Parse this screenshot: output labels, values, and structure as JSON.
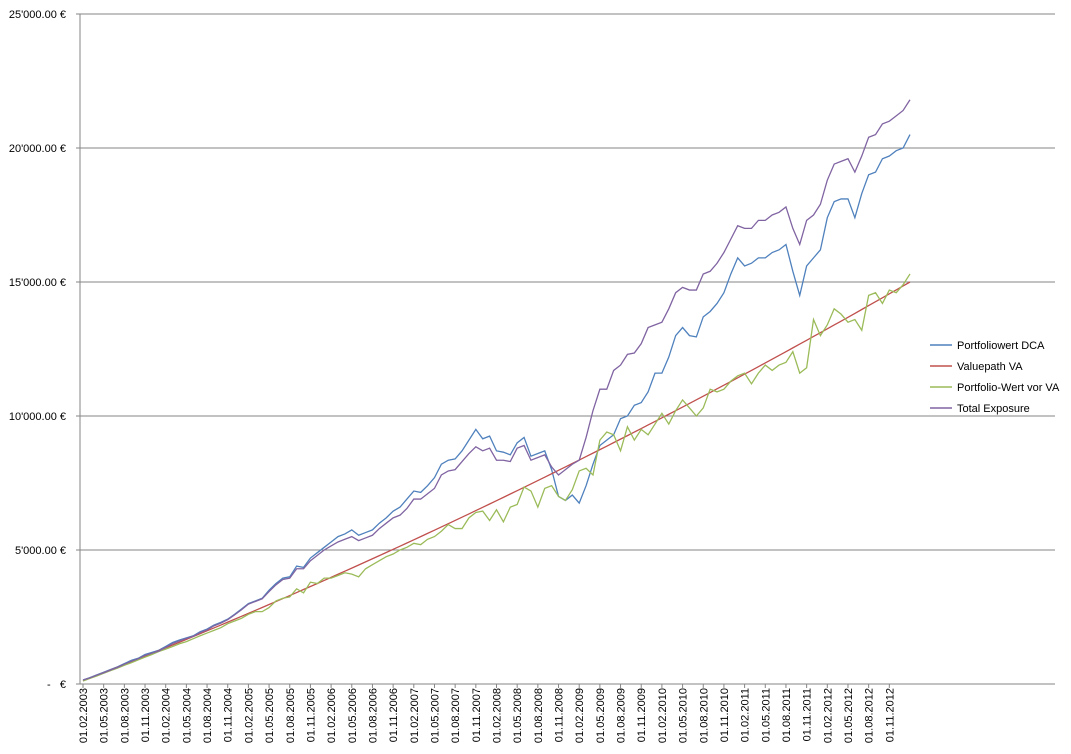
{
  "chart_data": {
    "type": "line",
    "categories": [
      "01.02.2003",
      null,
      null,
      "01.05.2003",
      null,
      null,
      "01.08.2003",
      null,
      null,
      "01.11.2003",
      null,
      null,
      "01.02.2004",
      null,
      null,
      "01.05.2004",
      null,
      null,
      "01.08.2004",
      null,
      null,
      "01.11.2004",
      null,
      null,
      "01.02.2005",
      null,
      null,
      "01.05.2005",
      null,
      null,
      "01.08.2005",
      null,
      null,
      "01.11.2005",
      null,
      null,
      "01.02.2006",
      null,
      null,
      "01.05.2006",
      null,
      null,
      "01.08.2006",
      null,
      null,
      "01.11.2006",
      null,
      null,
      "01.02.2007",
      null,
      null,
      "01.05.2007",
      null,
      null,
      "01.08.2007",
      null,
      null,
      "01.11.2007",
      null,
      null,
      "01.02.2008",
      null,
      null,
      "01.05.2008",
      null,
      null,
      "01.08.2008",
      null,
      null,
      "01.11.2008",
      null,
      null,
      "01.02.2009",
      null,
      null,
      "01.05.2009",
      null,
      null,
      "01.08.2009",
      null,
      null,
      "01.11.2009",
      null,
      null,
      "01.02.2010",
      null,
      null,
      "01.05.2010",
      null,
      null,
      "01.08.2010",
      null,
      null,
      "01.11.2010",
      null,
      null,
      "01.02.2011",
      null,
      null,
      "01.05.2011",
      null,
      null,
      "01.08.2011",
      null,
      null,
      "01.11.2011",
      null,
      null,
      "01.02.2012",
      null,
      null,
      "01.05.2012",
      null,
      null,
      "01.08.2012",
      null,
      null,
      "01.11.2012",
      null,
      null,
      null
    ],
    "series": [
      {
        "name": "Portfoliowert DCA",
        "color": "#4f81bd",
        "values": [
          150,
          240,
          340,
          440,
          540,
          640,
          760,
          880,
          960,
          1100,
          1180,
          1260,
          1400,
          1550,
          1640,
          1720,
          1800,
          1950,
          2050,
          2200,
          2300,
          2420,
          2600,
          2800,
          3000,
          3100,
          3200,
          3500,
          3750,
          3950,
          4000,
          4400,
          4350,
          4700,
          4900,
          5100,
          5300,
          5500,
          5600,
          5750,
          5550,
          5650,
          5750,
          6000,
          6200,
          6450,
          6600,
          6900,
          7200,
          7150,
          7400,
          7700,
          8200,
          8350,
          8400,
          8700,
          9100,
          9500,
          9150,
          9250,
          8700,
          8650,
          8550,
          9000,
          9200,
          8500,
          8600,
          8700,
          8000,
          7000,
          6850,
          7050,
          6750,
          7400,
          8200,
          8900,
          9100,
          9300,
          9900,
          10000,
          10400,
          10500,
          10900,
          11600,
          11600,
          12200,
          13000,
          13300,
          13000,
          12950,
          13700,
          13900,
          14200,
          14600,
          15300,
          15900,
          15600,
          15700,
          15900,
          15900,
          16100,
          16200,
          16400,
          15400,
          14500,
          15600,
          15900,
          16200,
          17400,
          18000,
          18100,
          18100,
          17400,
          18300,
          19000,
          19100,
          19600,
          19700,
          19900,
          20000,
          20500
        ]
      },
      {
        "name": "Valuepath VA",
        "color": "#c0504d",
        "values": [
          120,
          220,
          321,
          422,
          523,
          625,
          727,
          830,
          933,
          1036,
          1140,
          1244,
          1349,
          1454,
          1559,
          1665,
          1771,
          1878,
          1985,
          2092,
          2200,
          2308,
          2417,
          2526,
          2635,
          2745,
          2855,
          2966,
          3077,
          3188,
          3300,
          3412,
          3525,
          3638,
          3751,
          3865,
          3979,
          4094,
          4209,
          4324,
          4440,
          4556,
          4673,
          4790,
          4907,
          5025,
          5143,
          5262,
          5381,
          5500,
          5620,
          5740,
          5861,
          5982,
          6103,
          6225,
          6347,
          6470,
          6593,
          6716,
          6840,
          6964,
          7089,
          7214,
          7339,
          7465,
          7591,
          7718,
          7845,
          7972,
          8100,
          8228,
          8357,
          8486,
          8615,
          8745,
          8875,
          9006,
          9137,
          9268,
          9400,
          9532,
          9665,
          9798,
          9931,
          10065,
          10199,
          10334,
          10469,
          10604,
          10740,
          10876,
          11013,
          11150,
          11287,
          11425,
          11563,
          11702,
          11841,
          11980,
          12120,
          12260,
          12401,
          12542,
          12683,
          12825,
          12967,
          13110,
          13253,
          13396,
          13540,
          13684,
          13829,
          13974,
          14119,
          14265,
          14411,
          14558,
          14705,
          14852,
          15000
        ]
      },
      {
        "name": "Portfolio-Wert vor VA",
        "color": "#9bbb59",
        "values": [
          110,
          210,
          300,
          400,
          500,
          590,
          700,
          790,
          900,
          1000,
          1100,
          1210,
          1300,
          1400,
          1500,
          1580,
          1690,
          1800,
          1900,
          2000,
          2100,
          2250,
          2350,
          2450,
          2600,
          2700,
          2700,
          2850,
          3100,
          3200,
          3250,
          3550,
          3400,
          3800,
          3750,
          3950,
          3950,
          4050,
          4150,
          4100,
          4000,
          4300,
          4450,
          4600,
          4750,
          4850,
          5000,
          5100,
          5250,
          5200,
          5400,
          5500,
          5700,
          5950,
          5800,
          5800,
          6200,
          6400,
          6450,
          6100,
          6500,
          6050,
          6600,
          6700,
          7350,
          7200,
          6600,
          7300,
          7400,
          7000,
          6850,
          7250,
          7950,
          8050,
          7800,
          9100,
          9400,
          9300,
          8700,
          9600,
          9100,
          9500,
          9300,
          9700,
          10100,
          9700,
          10200,
          10600,
          10300,
          10000,
          10300,
          11000,
          10900,
          11000,
          11300,
          11500,
          11600,
          11200,
          11600,
          11900,
          11700,
          11900,
          12000,
          12400,
          11600,
          11800,
          13600,
          13000,
          13400,
          14000,
          13800,
          13500,
          13600,
          13200,
          14500,
          14600,
          14200,
          14700,
          14600,
          14900,
          15300
        ]
      },
      {
        "name": "Total Exposure",
        "color": "#8064a2",
        "values": [
          150,
          230,
          330,
          420,
          520,
          620,
          740,
          850,
          940,
          1070,
          1150,
          1230,
          1370,
          1510,
          1610,
          1700,
          1780,
          1920,
          2020,
          2170,
          2270,
          2400,
          2580,
          2770,
          2980,
          3080,
          3180,
          3450,
          3700,
          3900,
          3950,
          4300,
          4300,
          4600,
          4800,
          5000,
          5150,
          5300,
          5400,
          5500,
          5350,
          5450,
          5550,
          5800,
          6000,
          6200,
          6300,
          6550,
          6900,
          6900,
          7100,
          7300,
          7800,
          7950,
          8000,
          8300,
          8600,
          8850,
          8700,
          8800,
          8350,
          8350,
          8300,
          8800,
          8900,
          8350,
          8450,
          8550,
          8100,
          7800,
          8000,
          8200,
          8350,
          9200,
          10200,
          11000,
          11000,
          11700,
          11900,
          12300,
          12350,
          12700,
          13300,
          13400,
          13500,
          14000,
          14600,
          14800,
          14700,
          14700,
          15300,
          15400,
          15700,
          16100,
          16600,
          17100,
          17000,
          17000,
          17300,
          17300,
          17500,
          17600,
          17800,
          17000,
          16400,
          17300,
          17500,
          17900,
          18800,
          19400,
          19500,
          19600,
          19100,
          19700,
          20400,
          20500,
          20900,
          21000,
          21200,
          21400,
          21800
        ]
      }
    ],
    "ylim": [
      0,
      25000
    ],
    "yticks": [
      {
        "value": 0,
        "label": "-   €"
      },
      {
        "value": 5000,
        "label": "5'000.00 €"
      },
      {
        "value": 10000,
        "label": "10'000.00 €"
      },
      {
        "value": 15000,
        "label": "15'000.00 €"
      },
      {
        "value": 20000,
        "label": "20'000.00 €"
      },
      {
        "value": 25000,
        "label": "25'000.00 €"
      }
    ],
    "grid": true,
    "legend": "right"
  }
}
